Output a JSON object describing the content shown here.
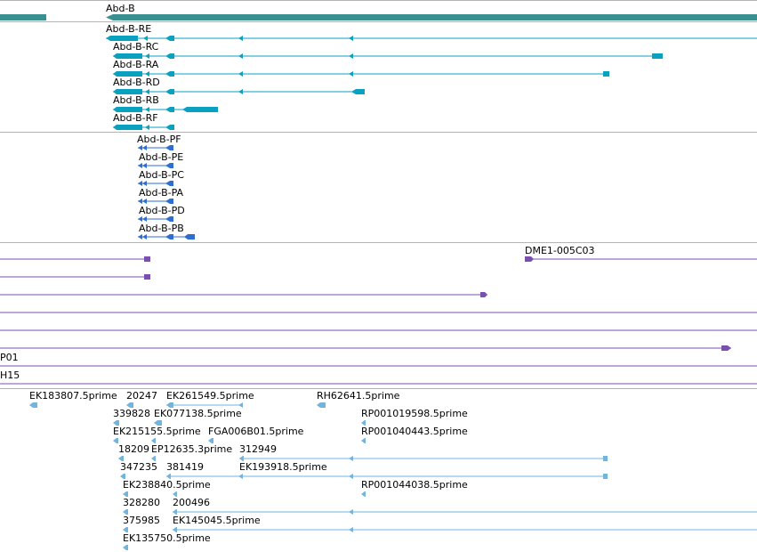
{
  "colors": {
    "gene": "#3a9090",
    "transcript": "#0aa0c0",
    "protein": "#2f6ed0",
    "cdna": "#7a4fb0",
    "est": "#72b4dc",
    "divider": "#b4b4b4",
    "label": "#000000"
  },
  "gene_track": {
    "gene_label": "Abd-B"
  },
  "transcripts_track": {
    "items": [
      {
        "label": "Abd-B-RE"
      },
      {
        "label": "Abd-B-RC"
      },
      {
        "label": "Abd-B-RA"
      },
      {
        "label": "Abd-B-RD"
      },
      {
        "label": "Abd-B-RB"
      },
      {
        "label": "Abd-B-RF"
      }
    ]
  },
  "proteins_track": {
    "items": [
      {
        "label": "Abd-B-PF"
      },
      {
        "label": "Abd-B-PE"
      },
      {
        "label": "Abd-B-PC"
      },
      {
        "label": "Abd-B-PA"
      },
      {
        "label": "Abd-B-PD"
      },
      {
        "label": "Abd-B-PB"
      }
    ]
  },
  "cdna_track": {
    "labels": [
      {
        "text": "DME1-005C03"
      },
      {
        "text": "P01"
      },
      {
        "text": "H15"
      }
    ]
  },
  "est_track": {
    "labels": [
      {
        "text": "EK183807.5prime"
      },
      {
        "text": "20247"
      },
      {
        "text": "EK261549.5prime"
      },
      {
        "text": "RH62641.5prime"
      },
      {
        "text": "339828"
      },
      {
        "text": "EK077138.5prime"
      },
      {
        "text": "RP001019598.5prime"
      },
      {
        "text": "EK215155.5prime"
      },
      {
        "text": "FGA006B01.5prime"
      },
      {
        "text": "RP001040443.5prime"
      },
      {
        "text": "18209"
      },
      {
        "text": "EP12635.3prime"
      },
      {
        "text": "312949"
      },
      {
        "text": "347235"
      },
      {
        "text": "381419"
      },
      {
        "text": "EK193918.5prime"
      },
      {
        "text": "EK238840.5prime"
      },
      {
        "text": "RP001044038.5prime"
      },
      {
        "text": "328280"
      },
      {
        "text": "200496"
      },
      {
        "text": "375985"
      },
      {
        "text": "EK145045.5prime"
      },
      {
        "text": "EK135750.5prime"
      }
    ]
  }
}
